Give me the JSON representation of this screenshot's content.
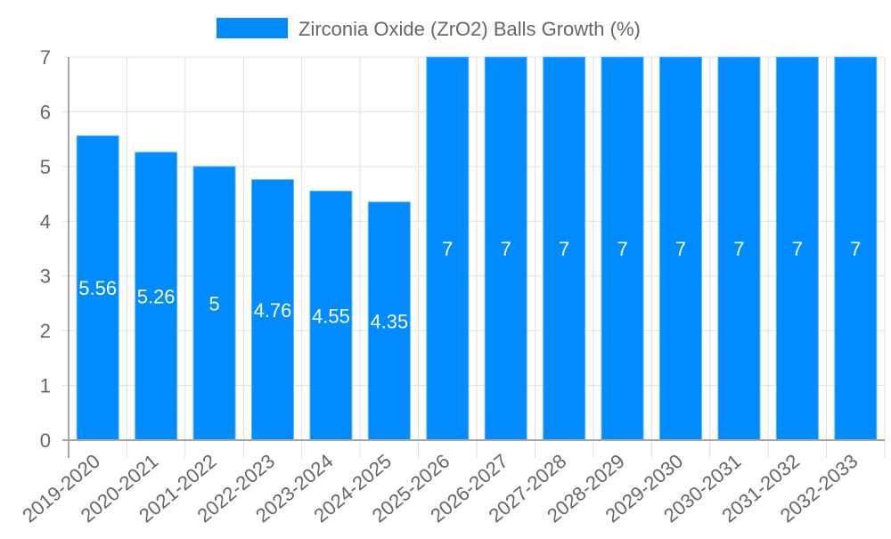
{
  "legend": {
    "label": "Zirconia Oxide (ZrO2) Balls Growth (%)",
    "swatch_color": "#008cff"
  },
  "colors": {
    "bar": "#008cff",
    "bar_border": "#5eb5ff",
    "grid": "#e0e0e0",
    "axis": "#a6a6a6",
    "tick_text": "#666666",
    "data_label": "#ffffff"
  },
  "chart_data": {
    "type": "bar",
    "title": "",
    "xlabel": "",
    "ylabel": "",
    "ylim": [
      0,
      7
    ],
    "yticks": [
      0,
      1,
      2,
      3,
      4,
      5,
      6,
      7
    ],
    "grid": true,
    "legend_position": "top",
    "categories": [
      "2019-2020",
      "2020-2021",
      "2021-2022",
      "2022-2023",
      "2023-2024",
      "2024-2025",
      "2025-2026",
      "2026-2027",
      "2027-2028",
      "2028-2029",
      "2029-2030",
      "2030-2031",
      "2031-2032",
      "2032-2033"
    ],
    "series": [
      {
        "name": "Zirconia Oxide (ZrO2) Balls Growth (%)",
        "values": [
          5.56,
          5.26,
          5,
          4.76,
          4.55,
          4.35,
          7,
          7,
          7,
          7,
          7,
          7,
          7,
          7
        ],
        "labels": [
          "5.56",
          "5.26",
          "5",
          "4.76",
          "4.55",
          "4.35",
          "7",
          "7",
          "7",
          "7",
          "7",
          "7",
          "7",
          "7"
        ]
      }
    ]
  }
}
